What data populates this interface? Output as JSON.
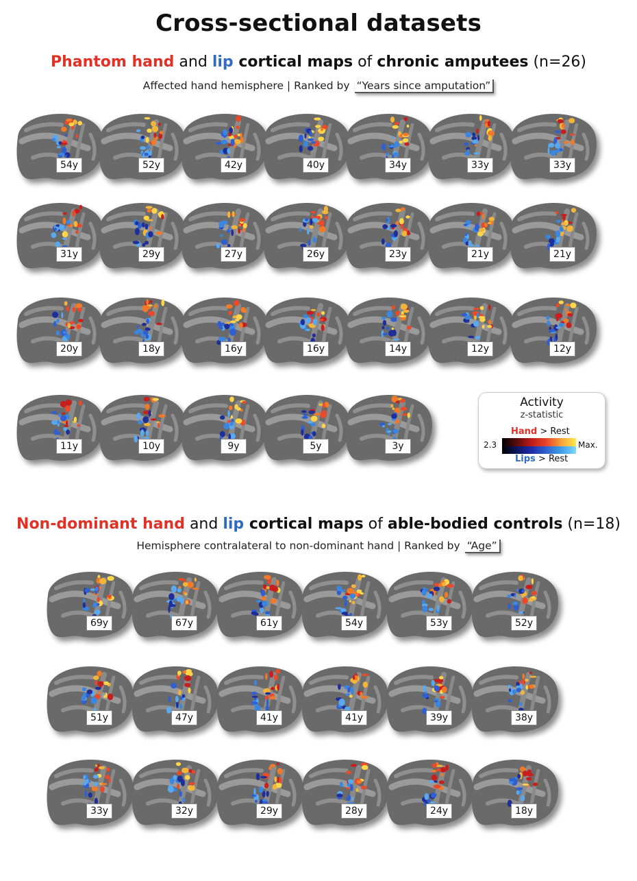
{
  "title": "Cross-sectional datasets",
  "amputees": {
    "heading": {
      "part1": "Phantom hand",
      "part2": " and ",
      "part3": "lip",
      "part4": " cortical maps",
      "part5": " of ",
      "part6": "chronic amputees",
      "part7": " (n=26)"
    },
    "subtitle": "Affected hand hemisphere | Ranked by",
    "rank_key": "“Years since amputation”",
    "ages": [
      "54y",
      "52y",
      "42y",
      "40y",
      "34y",
      "33y",
      "33y",
      "31y",
      "29y",
      "27y",
      "26y",
      "23y",
      "21y",
      "21y",
      "20y",
      "18y",
      "16y",
      "16y",
      "14y",
      "12y",
      "12y",
      "11y",
      "10y",
      "9y",
      "5y",
      "3y"
    ]
  },
  "controls": {
    "heading": {
      "part1": "Non-dominant hand",
      "part2": " and ",
      "part3": "lip",
      "part4": " cortical maps",
      "part5": " of ",
      "part6": "able-bodied controls",
      "part7": " (n=18)"
    },
    "subtitle": "Hemisphere contralateral to non-dominant hand | Ranked by",
    "rank_key": "“Age”",
    "ages": [
      "69y",
      "67y",
      "61y",
      "54y",
      "53y",
      "52y",
      "51y",
      "47y",
      "41y",
      "41y",
      "39y",
      "38y",
      "33y",
      "32y",
      "29y",
      "28y",
      "24y",
      "18y"
    ]
  },
  "legend": {
    "title": "Activity",
    "subtitle": "z-statistic",
    "hand": "Hand",
    "hand_suffix": " > Rest",
    "lips": "Lips",
    "lips_suffix": " > Rest",
    "min": "2.3",
    "max": "Max."
  },
  "colors": {
    "hand": "#e03126",
    "lips": "#2f6cc0"
  }
}
